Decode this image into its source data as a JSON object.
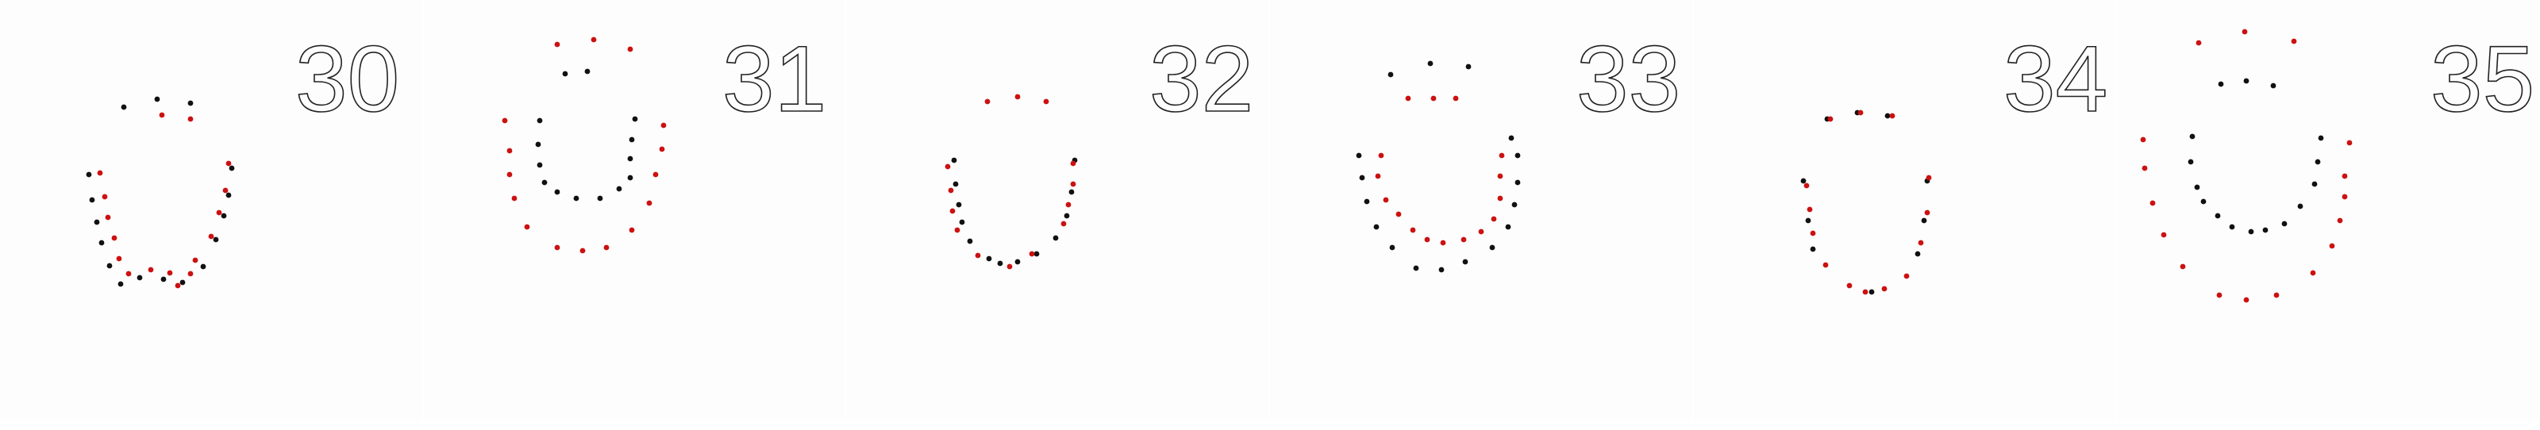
{
  "colors": {
    "black_dot": "#111111",
    "red_dot": "#cc1111",
    "background": "#fdfdfd",
    "label_stroke": "#222222"
  },
  "panels": [
    {
      "label": "30",
      "black": [
        [
          156,
          135
        ],
        [
          198,
          125
        ],
        [
          240,
          130
        ],
        [
          112,
          220
        ],
        [
          116,
          252
        ],
        [
          122,
          280
        ],
        [
          128,
          306
        ],
        [
          138,
          335
        ],
        [
          152,
          358
        ],
        [
          176,
          350
        ],
        [
          206,
          352
        ],
        [
          230,
          356
        ],
        [
          256,
          336
        ],
        [
          272,
          302
        ],
        [
          282,
          272
        ],
        [
          288,
          246
        ],
        [
          292,
          212
        ]
      ],
      "red": [
        [
          204,
          145
        ],
        [
          240,
          150
        ],
        [
          126,
          218
        ],
        [
          132,
          248
        ],
        [
          136,
          274
        ],
        [
          144,
          300
        ],
        [
          150,
          326
        ],
        [
          162,
          345
        ],
        [
          190,
          340
        ],
        [
          214,
          344
        ],
        [
          240,
          345
        ],
        [
          246,
          328
        ],
        [
          266,
          298
        ],
        [
          276,
          268
        ],
        [
          284,
          240
        ],
        [
          288,
          206
        ],
        [
          224,
          360
        ]
      ]
    },
    {
      "label": "31",
      "black": [
        [
          712,
          93
        ],
        [
          740,
          90
        ],
        [
          680,
          152
        ],
        [
          678,
          182
        ],
        [
          680,
          208
        ],
        [
          686,
          230
        ],
        [
          702,
          242
        ],
        [
          726,
          250
        ],
        [
          756,
          250
        ],
        [
          780,
          238
        ],
        [
          794,
          224
        ],
        [
          794,
          200
        ],
        [
          796,
          176
        ],
        [
          800,
          150
        ]
      ],
      "red": [
        [
          702,
          56
        ],
        [
          748,
          50
        ],
        [
          794,
          62
        ],
        [
          636,
          152
        ],
        [
          642,
          190
        ],
        [
          642,
          220
        ],
        [
          648,
          250
        ],
        [
          664,
          286
        ],
        [
          702,
          312
        ],
        [
          734,
          316
        ],
        [
          764,
          312
        ],
        [
          796,
          290
        ],
        [
          818,
          256
        ],
        [
          826,
          220
        ],
        [
          834,
          188
        ],
        [
          836,
          158
        ]
      ]
    },
    {
      "label": "32",
      "black": [
        [
          1202,
          202
        ],
        [
          1204,
          232
        ],
        [
          1208,
          258
        ],
        [
          1212,
          280
        ],
        [
          1222,
          304
        ],
        [
          1246,
          326
        ],
        [
          1260,
          332
        ],
        [
          1282,
          330
        ],
        [
          1306,
          320
        ],
        [
          1330,
          300
        ],
        [
          1344,
          272
        ],
        [
          1350,
          242
        ],
        [
          1354,
          202
        ]
      ],
      "red": [
        [
          1244,
          128
        ],
        [
          1282,
          122
        ],
        [
          1318,
          128
        ],
        [
          1194,
          210
        ],
        [
          1198,
          240
        ],
        [
          1200,
          266
        ],
        [
          1206,
          290
        ],
        [
          1232,
          322
        ],
        [
          1272,
          336
        ],
        [
          1300,
          320
        ],
        [
          1340,
          282
        ],
        [
          1346,
          258
        ],
        [
          1352,
          232
        ],
        [
          1352,
          206
        ]
      ]
    },
    {
      "label": "33",
      "black": [
        [
          1752,
          94
        ],
        [
          1802,
          80
        ],
        [
          1850,
          84
        ],
        [
          1712,
          196
        ],
        [
          1716,
          224
        ],
        [
          1722,
          254
        ],
        [
          1734,
          286
        ],
        [
          1754,
          312
        ],
        [
          1784,
          338
        ],
        [
          1816,
          340
        ],
        [
          1846,
          330
        ],
        [
          1880,
          312
        ],
        [
          1900,
          286
        ],
        [
          1908,
          258
        ],
        [
          1912,
          230
        ],
        [
          1912,
          196
        ],
        [
          1904,
          174
        ]
      ],
      "red": [
        [
          1774,
          124
        ],
        [
          1806,
          124
        ],
        [
          1834,
          124
        ],
        [
          1740,
          196
        ],
        [
          1736,
          222
        ],
        [
          1746,
          252
        ],
        [
          1762,
          270
        ],
        [
          1780,
          290
        ],
        [
          1798,
          302
        ],
        [
          1818,
          306
        ],
        [
          1844,
          302
        ],
        [
          1866,
          292
        ],
        [
          1882,
          276
        ],
        [
          1890,
          250
        ],
        [
          1890,
          222
        ],
        [
          1892,
          196
        ]
      ]
    },
    {
      "label": "34",
      "black": [
        [
          2302,
          150
        ],
        [
          2340,
          142
        ],
        [
          2378,
          146
        ],
        [
          2272,
          228
        ],
        [
          2278,
          278
        ],
        [
          2284,
          314
        ],
        [
          2358,
          368
        ],
        [
          2416,
          320
        ],
        [
          2424,
          278
        ],
        [
          2428,
          228
        ]
      ],
      "red": [
        [
          2306,
          150
        ],
        [
          2344,
          142
        ],
        [
          2384,
          146
        ],
        [
          2276,
          234
        ],
        [
          2280,
          264
        ],
        [
          2284,
          294
        ],
        [
          2300,
          334
        ],
        [
          2330,
          360
        ],
        [
          2350,
          368
        ],
        [
          2374,
          364
        ],
        [
          2402,
          348
        ],
        [
          2420,
          306
        ],
        [
          2428,
          268
        ],
        [
          2430,
          224
        ]
      ]
    },
    {
      "label": "35",
      "black": [
        [
          2798,
          106
        ],
        [
          2830,
          102
        ],
        [
          2864,
          108
        ],
        [
          2762,
          172
        ],
        [
          2760,
          204
        ],
        [
          2768,
          236
        ],
        [
          2776,
          254
        ],
        [
          2794,
          272
        ],
        [
          2812,
          286
        ],
        [
          2836,
          292
        ],
        [
          2854,
          290
        ],
        [
          2878,
          282
        ],
        [
          2898,
          260
        ],
        [
          2916,
          232
        ],
        [
          2920,
          204
        ],
        [
          2924,
          174
        ]
      ],
      "red": [
        [
          2770,
          54
        ],
        [
          2828,
          40
        ],
        [
          2890,
          52
        ],
        [
          2700,
          176
        ],
        [
          2702,
          212
        ],
        [
          2712,
          256
        ],
        [
          2726,
          296
        ],
        [
          2750,
          336
        ],
        [
          2796,
          372
        ],
        [
          2830,
          378
        ],
        [
          2868,
          372
        ],
        [
          2914,
          344
        ],
        [
          2938,
          310
        ],
        [
          2948,
          278
        ],
        [
          2954,
          248
        ],
        [
          2954,
          222
        ],
        [
          2960,
          180
        ]
      ]
    }
  ]
}
